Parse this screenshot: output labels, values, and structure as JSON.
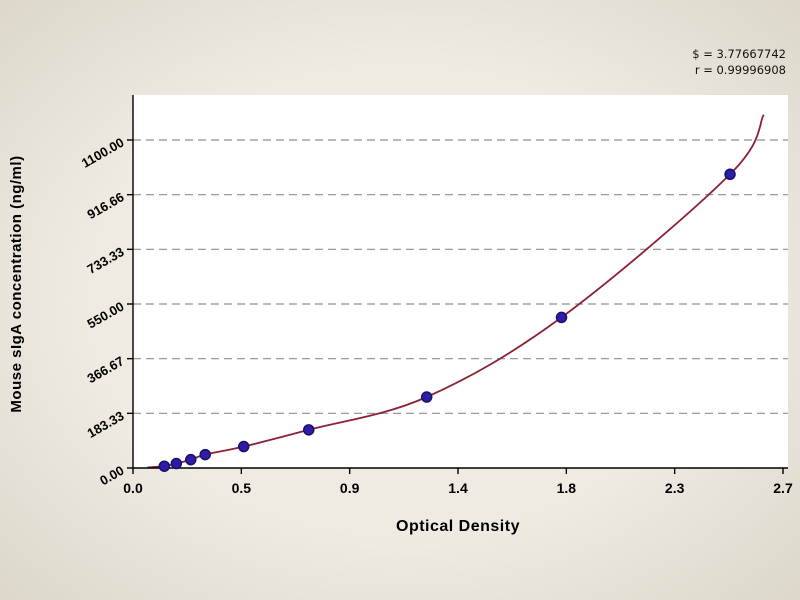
{
  "chart": {
    "background": "#ece8df",
    "plot_background": "#ffffff"
  },
  "chart_data": {
    "type": "scatter",
    "title": "",
    "xlabel": "Optical Density",
    "ylabel": "Mouse sIgA concentration (ng/ml)",
    "xlim": [
      0,
      2.7
    ],
    "ylim": [
      0,
      1100
    ],
    "x_ticks": [
      "0.0",
      "0.5",
      "0.9",
      "1.4",
      "1.8",
      "2.3",
      "2.7"
    ],
    "x_tick_values": [
      0,
      0.45,
      0.9,
      1.35,
      1.8,
      2.25,
      2.7
    ],
    "y_ticks": [
      "0.00",
      "183.33",
      "366.67",
      "550.00",
      "733.33",
      "916.66",
      "1100.00"
    ],
    "y_tick_values": [
      0,
      183.33,
      366.67,
      550,
      733.33,
      916.66,
      1100
    ],
    "grid": "horizontal-dashed",
    "legend": "none",
    "points": {
      "x": [
        0.13,
        0.18,
        0.24,
        0.3,
        0.46,
        0.73,
        1.22,
        1.78,
        2.48
      ],
      "y": [
        6,
        15,
        28,
        45,
        72,
        128,
        238,
        505,
        985
      ]
    },
    "curve": {
      "type": "exponential-fit",
      "start": [
        0.06,
        2
      ],
      "end": [
        2.62,
        1185
      ],
      "color": "#8d2134"
    },
    "point_color": "#2f1ca6",
    "point_stroke": "#190f6e",
    "annotations": [
      "$ = 3.77667742",
      "r = 0.99996908"
    ]
  }
}
